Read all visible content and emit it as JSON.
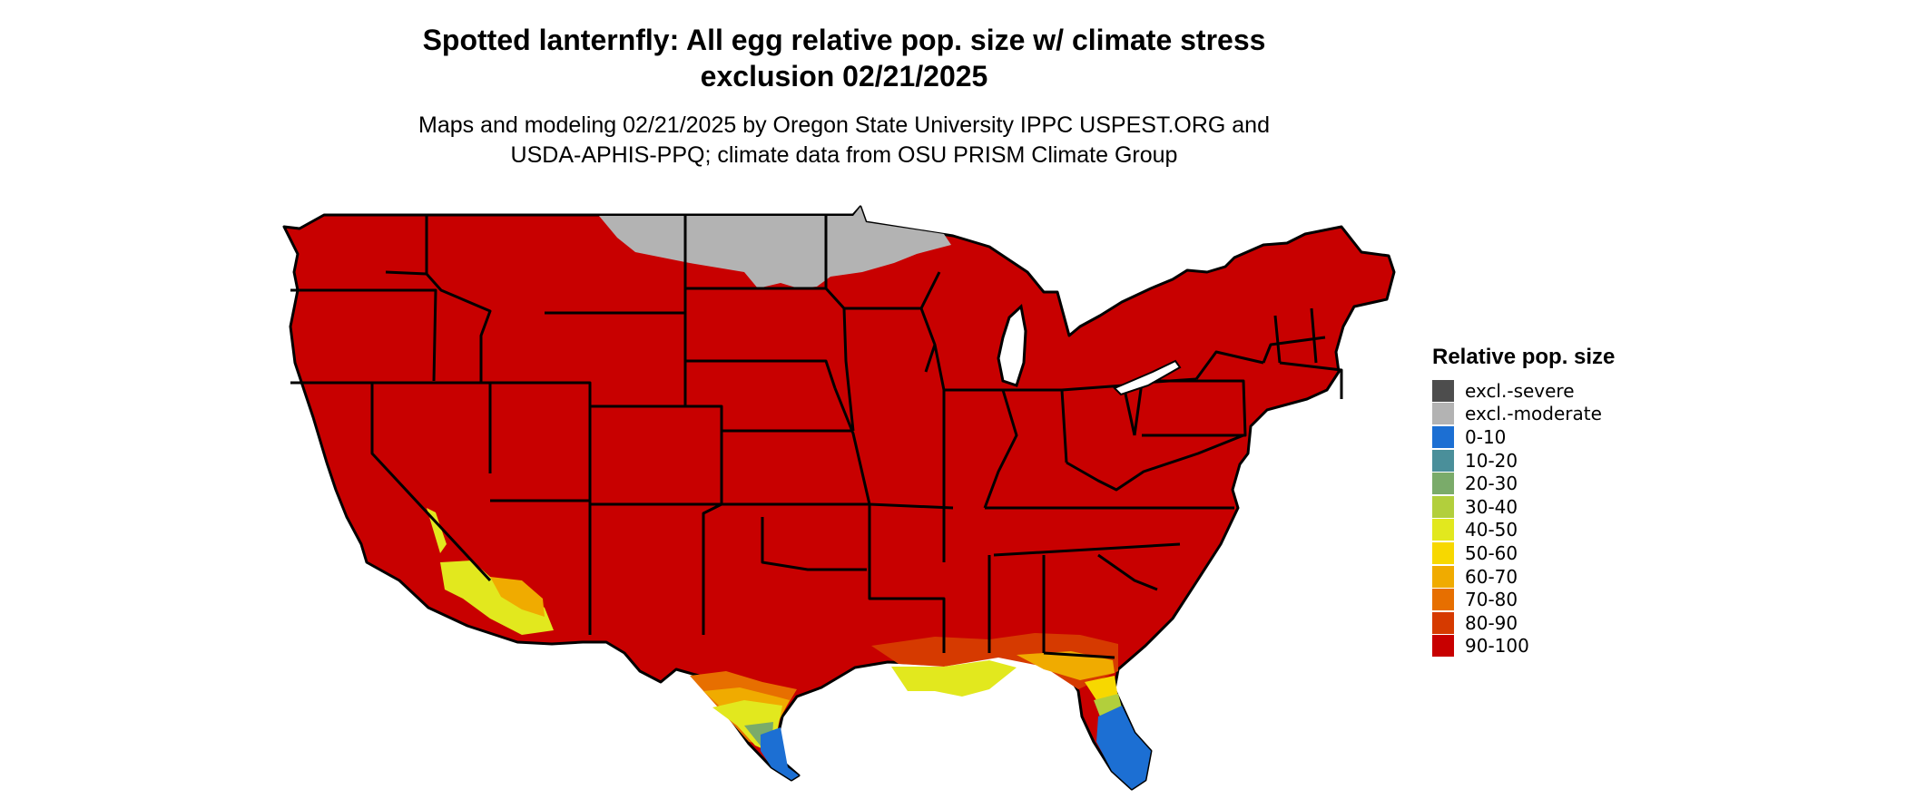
{
  "title_line1": "Spotted lanternfly: All egg relative pop. size w/ climate stress",
  "title_line2": "exclusion 02/21/2025",
  "subtitle_line1": "Maps and modeling 02/21/2025 by Oregon State University IPPC USPEST.ORG and",
  "subtitle_line2": "USDA-APHIS-PPQ; climate data from OSU PRISM Climate Group",
  "legend": {
    "title": "Relative pop. size",
    "items": [
      {
        "label": "excl.-severe",
        "color": "#4d4d4d"
      },
      {
        "label": "excl.-moderate",
        "color": "#b3b3b3"
      },
      {
        "label": "0-10",
        "color": "#1c6fd3"
      },
      {
        "label": "10-20",
        "color": "#4a8f9a"
      },
      {
        "label": "20-30",
        "color": "#7aab6a"
      },
      {
        "label": "30-40",
        "color": "#b2cf3c"
      },
      {
        "label": "40-50",
        "color": "#e2e81e"
      },
      {
        "label": "50-60",
        "color": "#f7d800"
      },
      {
        "label": "60-70",
        "color": "#f0ab00"
      },
      {
        "label": "70-80",
        "color": "#e76f00"
      },
      {
        "label": "80-90",
        "color": "#d63a00"
      },
      {
        "label": "90-100",
        "color": "#c80000"
      }
    ]
  }
}
